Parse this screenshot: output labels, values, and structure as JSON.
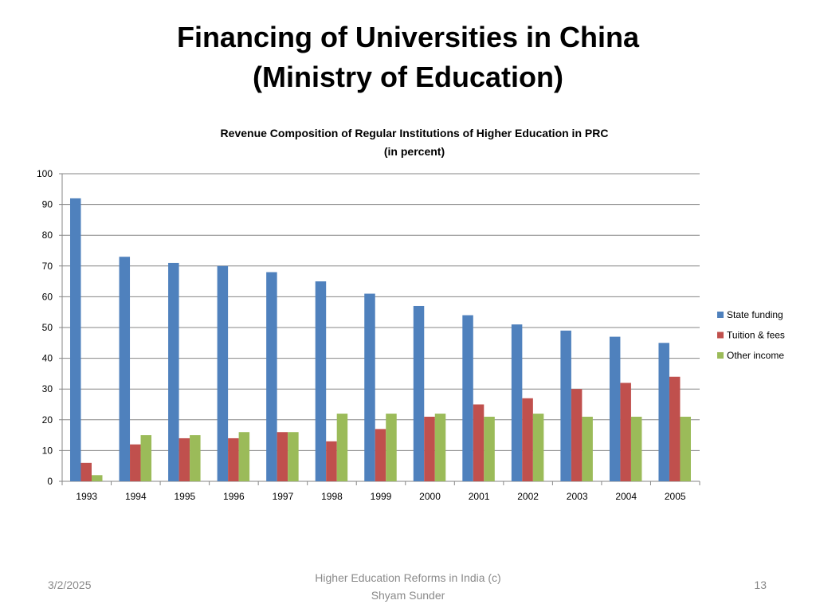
{
  "slide": {
    "title_line1": "Financing of Universities in China",
    "title_line2": "(Ministry of Education)"
  },
  "footer": {
    "date": "3/2/2025",
    "center_line1": "Higher Education Reforms in India (c)",
    "center_line2": "Shyam Sunder",
    "page": "13"
  },
  "colors": {
    "state": "#4F81BD",
    "tuition": "#C0504D",
    "other": "#9BBB59",
    "grid": "#868686"
  },
  "chart_data": {
    "type": "bar",
    "title": "Revenue Composition of Regular Institutions of Higher Education in PRC",
    "subtitle": "(in percent)",
    "xlabel": "",
    "ylabel": "",
    "ylim": [
      0,
      100
    ],
    "yticks": [
      0,
      10,
      20,
      30,
      40,
      50,
      60,
      70,
      80,
      90,
      100
    ],
    "grid": true,
    "legend": "right",
    "categories": [
      "1993",
      "1994",
      "1995",
      "1996",
      "1997",
      "1998",
      "1999",
      "2000",
      "2001",
      "2002",
      "2003",
      "2004",
      "2005"
    ],
    "series": [
      {
        "name": "State funding",
        "color": "#4F81BD",
        "values": [
          92,
          73,
          71,
          70,
          68,
          65,
          61,
          57,
          54,
          51,
          49,
          47,
          45
        ]
      },
      {
        "name": "Tuition & fees",
        "color": "#C0504D",
        "values": [
          6,
          12,
          14,
          14,
          16,
          13,
          17,
          21,
          25,
          27,
          30,
          32,
          34
        ]
      },
      {
        "name": "Other income",
        "color": "#9BBB59",
        "values": [
          2,
          15,
          15,
          16,
          16,
          22,
          22,
          22,
          21,
          22,
          21,
          21,
          21
        ]
      }
    ]
  }
}
